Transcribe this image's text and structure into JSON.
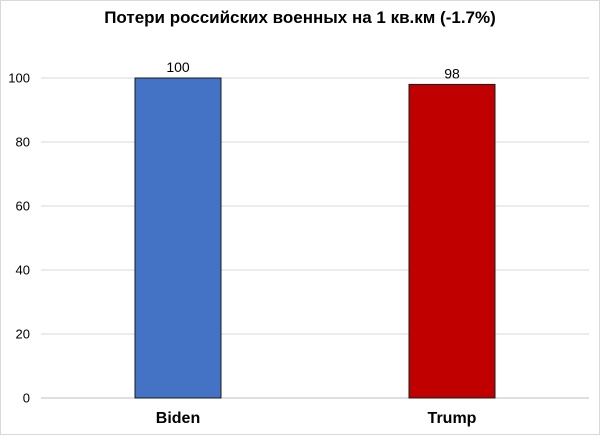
{
  "chart_data": {
    "type": "bar",
    "title": "Потери российских военных на 1 кв.км (-1.7%)",
    "xlabel": "",
    "ylabel": "",
    "categories": [
      "Biden",
      "Trump"
    ],
    "values": [
      100,
      98
    ],
    "data_labels": [
      "100",
      "98"
    ],
    "colors": [
      "#4472c4",
      "#c00000"
    ],
    "ylim": [
      0,
      100
    ],
    "yticks": [
      0,
      20,
      40,
      60,
      80,
      100
    ],
    "grid": true,
    "legend": "none"
  }
}
